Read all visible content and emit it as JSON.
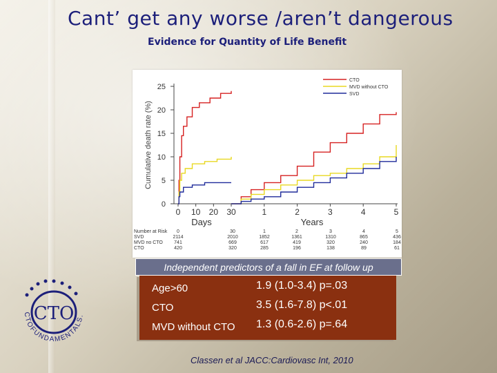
{
  "slide": {
    "title": "Cant’ get any worse /aren’t dangerous",
    "subtitle": "Evidence for Quantity of Life Benefit",
    "banner": "Independent predictors of a fall in EF at follow up",
    "citation": "Classen et al JACC:Cardiovasc Int, 2010",
    "logo_text": "CTO",
    "logo_ring_text": "CTOFUNDAMENTALS.ORG"
  },
  "predictors": [
    {
      "label": "Age>60",
      "value": "1.9 (1.0-3.4) p=.03"
    },
    {
      "label": "CTO",
      "value": "3.5 (1.6-7.8) p<.01"
    },
    {
      "label": "MVD  without CTO",
      "value": "1.3 (0.6-2.6) p=.64"
    }
  ],
  "chart_data": {
    "type": "line",
    "ylabel": "Cumulative death rate (%)",
    "yticks": [
      "25",
      "20",
      "15",
      "10",
      "5",
      "0"
    ],
    "ylim": [
      0,
      25
    ],
    "segments": [
      {
        "xlabel": "Days",
        "xticks": [
          "0",
          "10",
          "20",
          "30"
        ],
        "xlim": [
          0,
          30
        ]
      },
      {
        "xlabel": "Years",
        "xticks": [
          "30",
          "1",
          "2",
          "3",
          "4",
          "5"
        ],
        "xlim": [
          0,
          5
        ]
      }
    ],
    "legend_position": "top-right",
    "series": [
      {
        "name": "CTO",
        "color": "#d62020",
        "days": [
          [
            0,
            0
          ],
          [
            0.5,
            5
          ],
          [
            1,
            10
          ],
          [
            2,
            14.5
          ],
          [
            3,
            16.5
          ],
          [
            5,
            18.5
          ],
          [
            8,
            20.5
          ],
          [
            12,
            21.5
          ],
          [
            18,
            22.5
          ],
          [
            24,
            23.5
          ],
          [
            30,
            24
          ]
        ],
        "years": [
          [
            0,
            0
          ],
          [
            0.3,
            1.5
          ],
          [
            0.6,
            3
          ],
          [
            1,
            4.5
          ],
          [
            1.5,
            6
          ],
          [
            2,
            8
          ],
          [
            2.5,
            11
          ],
          [
            3,
            13
          ],
          [
            3.5,
            15
          ],
          [
            4,
            17
          ],
          [
            4.5,
            19
          ],
          [
            5,
            19.5
          ]
        ]
      },
      {
        "name": "MVD without CTO",
        "color": "#e8d820",
        "days": [
          [
            0,
            0
          ],
          [
            0.5,
            2.5
          ],
          [
            1,
            5
          ],
          [
            2,
            6.5
          ],
          [
            4,
            7.5
          ],
          [
            8,
            8.5
          ],
          [
            15,
            9
          ],
          [
            22,
            9.5
          ],
          [
            30,
            10
          ]
        ],
        "years": [
          [
            0,
            0
          ],
          [
            0.3,
            1
          ],
          [
            0.6,
            2
          ],
          [
            1,
            3
          ],
          [
            1.5,
            4
          ],
          [
            2,
            5
          ],
          [
            2.5,
            6
          ],
          [
            3,
            6.5
          ],
          [
            3.5,
            7.5
          ],
          [
            4,
            8.5
          ],
          [
            4.5,
            10
          ],
          [
            5,
            12.5
          ]
        ]
      },
      {
        "name": "SVD",
        "color": "#1e2a9a",
        "days": [
          [
            0,
            0
          ],
          [
            0.5,
            1.5
          ],
          [
            1,
            2.5
          ],
          [
            3,
            3.5
          ],
          [
            8,
            4
          ],
          [
            15,
            4.5
          ],
          [
            30,
            4.5
          ]
        ],
        "years": [
          [
            0,
            0
          ],
          [
            0.3,
            0.5
          ],
          [
            0.6,
            1
          ],
          [
            1,
            1.5
          ],
          [
            1.5,
            2.5
          ],
          [
            2,
            3.5
          ],
          [
            2.5,
            4.5
          ],
          [
            3,
            5.5
          ],
          [
            3.5,
            6.5
          ],
          [
            4,
            7.5
          ],
          [
            4.5,
            9
          ],
          [
            5,
            10
          ]
        ]
      }
    ],
    "number_at_risk": {
      "header": [
        "Number at Risk",
        "0",
        "30",
        "1",
        "2",
        "3",
        "4",
        "5"
      ],
      "rows": [
        [
          "SVD",
          "2114",
          "2010",
          "1852",
          "1361",
          "1310",
          "865",
          "436"
        ],
        [
          "MVD no CTO",
          "741",
          "669",
          "617",
          "419",
          "320",
          "240",
          "184"
        ],
        [
          "CTO",
          "420",
          "320",
          "285",
          "196",
          "138",
          "89",
          "61"
        ]
      ]
    }
  }
}
